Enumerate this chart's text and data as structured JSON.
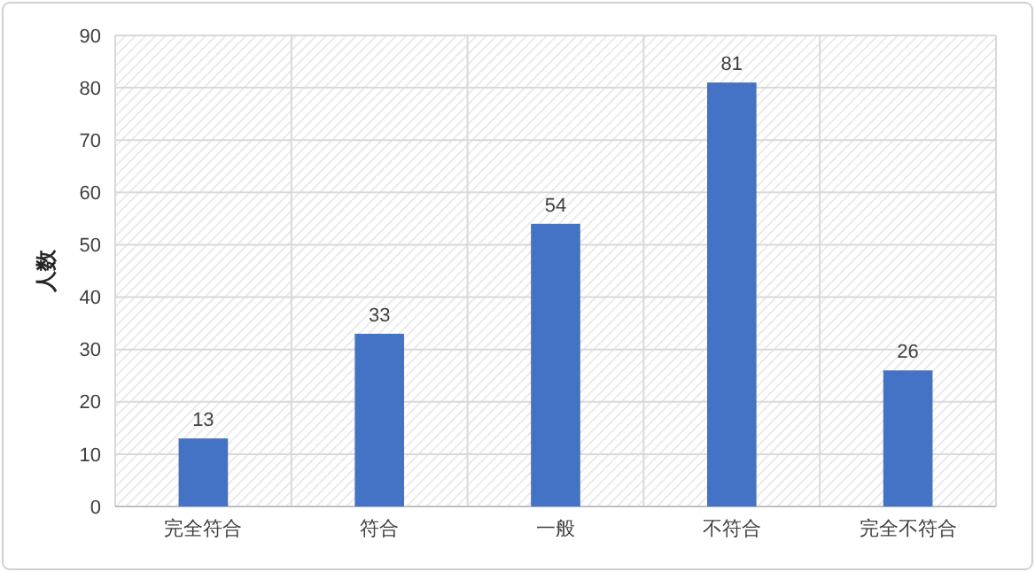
{
  "chart_data": {
    "type": "bar",
    "ylabel": "人数",
    "categories": [
      "完全符合",
      "符合",
      "一般",
      "不符合",
      "完全不符合"
    ],
    "values": [
      13,
      33,
      54,
      81,
      26
    ],
    "color": "#4472c4",
    "ylim": [
      0,
      90
    ],
    "yticks": [
      0,
      10,
      20,
      30,
      40,
      50,
      60,
      70,
      80,
      90
    ],
    "grid": true,
    "data_labels": true
  }
}
